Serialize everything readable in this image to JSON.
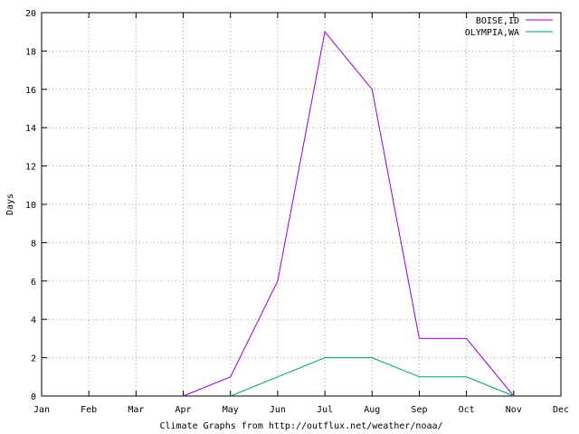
{
  "chart_data": {
    "type": "line",
    "title": "",
    "ylabel": "Days",
    "xlabel": "Climate Graphs from http://outflux.net/weather/noaa/",
    "categories": [
      "Jan",
      "Feb",
      "Mar",
      "Apr",
      "May",
      "Jun",
      "Jul",
      "Aug",
      "Sep",
      "Oct",
      "Nov",
      "Dec"
    ],
    "ylim": [
      0,
      20
    ],
    "yticks": [
      0,
      2,
      4,
      6,
      8,
      10,
      12,
      14,
      16,
      18,
      20
    ],
    "grid": true,
    "legend_position": "top-right",
    "series": [
      {
        "name": "BOISE,ID",
        "color": "#9400d3",
        "points": [
          {
            "x": "Apr",
            "y": 0
          },
          {
            "x": "May",
            "y": 1
          },
          {
            "x": "Jun",
            "y": 6
          },
          {
            "x": "Jul",
            "y": 19
          },
          {
            "x": "Aug",
            "y": 16
          },
          {
            "x": "Sep",
            "y": 3
          },
          {
            "x": "Oct",
            "y": 3
          },
          {
            "x": "Nov",
            "y": 0
          }
        ]
      },
      {
        "name": "OLYMPIA,WA",
        "color": "#009e73",
        "points": [
          {
            "x": "May",
            "y": 0
          },
          {
            "x": "Jun",
            "y": 1
          },
          {
            "x": "Jul",
            "y": 2
          },
          {
            "x": "Aug",
            "y": 2
          },
          {
            "x": "Sep",
            "y": 1
          },
          {
            "x": "Oct",
            "y": 1
          },
          {
            "x": "Nov",
            "y": 0
          }
        ]
      }
    ]
  }
}
